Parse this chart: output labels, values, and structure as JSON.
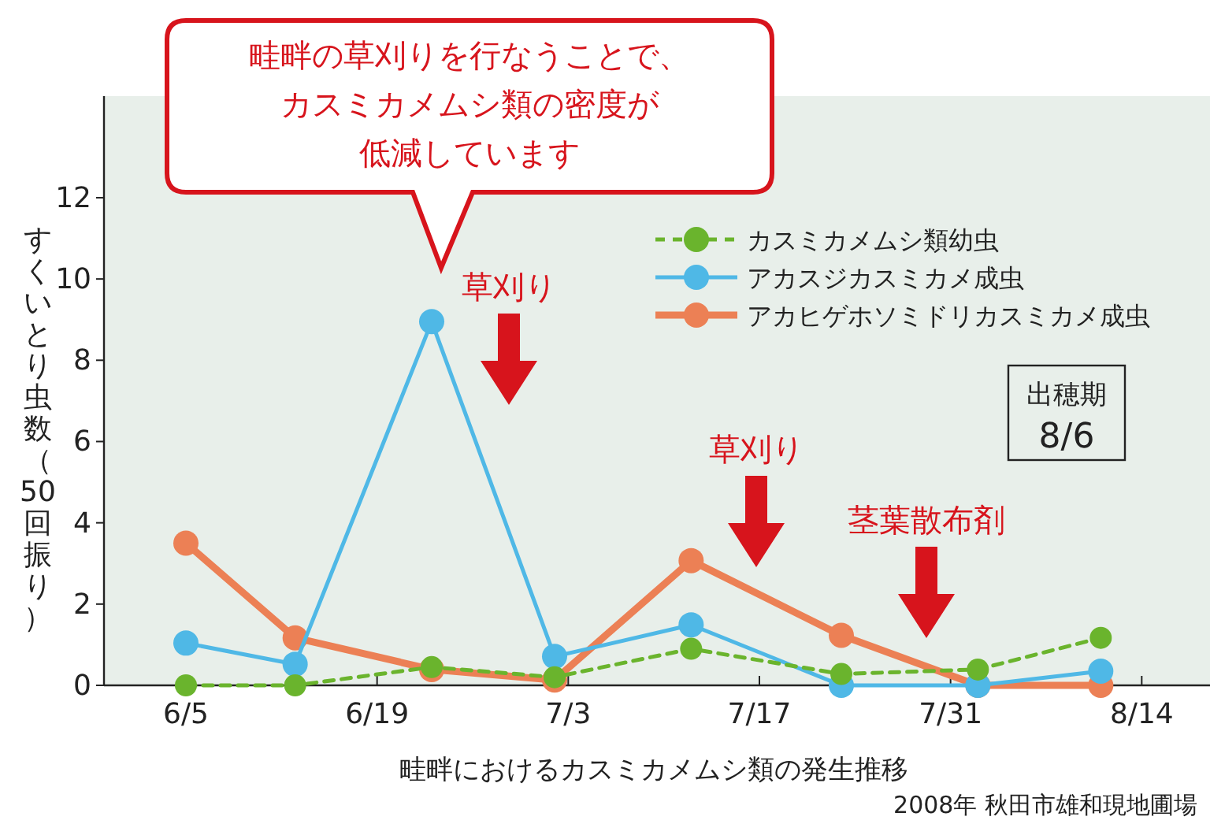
{
  "chart_data": {
    "type": "line",
    "xlabel": "畦畔におけるカスミカメムシ類の発生推移",
    "ylabel": "すくいとり虫数（50回振り）",
    "x": [
      "--06-05",
      "--06-13",
      "--06-23",
      "--07-02",
      "--07-12",
      "--07-23",
      "--08-02",
      "--08-11"
    ],
    "xlim": [
      "--05-30",
      "--08-19"
    ],
    "xticks": [
      {
        "value": "--06-05",
        "label": "6/5"
      },
      {
        "value": "--06-19",
        "label": "6/19"
      },
      {
        "value": "--07-03",
        "label": "7/3"
      },
      {
        "value": "--07-17",
        "label": "7/17"
      },
      {
        "value": "--07-31",
        "label": "7/31"
      },
      {
        "value": "--08-14",
        "label": "8/14"
      }
    ],
    "ylim": [
      0,
      14.5
    ],
    "yticks": [
      0,
      2,
      4,
      6,
      8,
      10,
      12
    ],
    "grid": false,
    "legend": "top right",
    "marker": "circle",
    "series": [
      {
        "name": "カスミカメムシ類幼虫",
        "color": "#6ab42d",
        "line_style": "dashed",
        "values": [
          0,
          0,
          0.45,
          0.2,
          0.9,
          0.28,
          0.39,
          1.17
        ]
      },
      {
        "name": "アカスジカスミカメ成虫",
        "color": "#4fb8e6",
        "line_style": "solid",
        "values": [
          1.04,
          0.52,
          8.95,
          0.71,
          1.49,
          0,
          0,
          0.35
        ]
      },
      {
        "name": "アカヒゲホソミドリカスミカメ成虫",
        "color": "#ec8055",
        "line_style": "solid",
        "values": [
          3.5,
          1.17,
          0.39,
          0.13,
          3.07,
          1.23,
          0,
          0
        ]
      }
    ],
    "annotations": [
      "畦畔の草刈りを行なうことで、カスミカメムシ類の密度が低減しています",
      "草刈り",
      "草刈り",
      "茎葉散布剤",
      "出穂期\n8/6",
      "2008年 秋田市雄和現地圃場"
    ]
  }
}
